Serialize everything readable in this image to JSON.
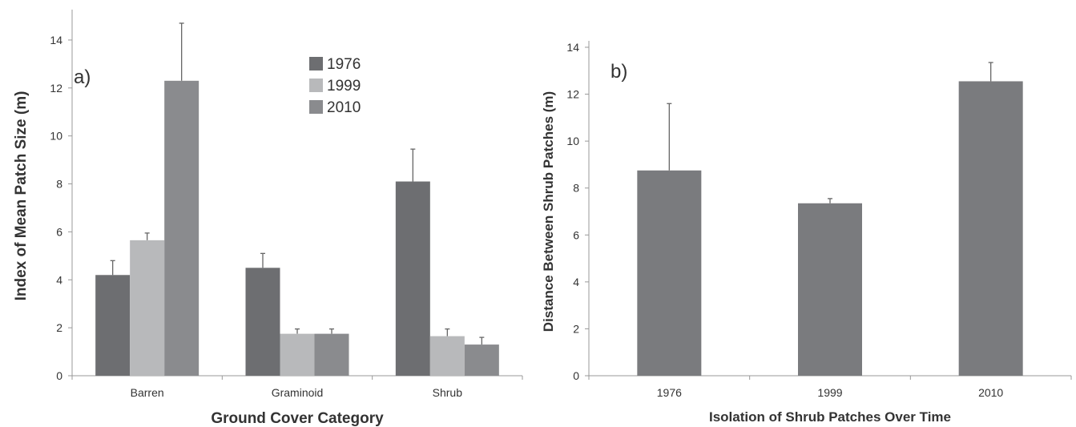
{
  "chart_data": [
    {
      "type": "bar",
      "panel_label": "a)",
      "xlabel": "Ground Cover Category",
      "ylabel": "Index of Mean Patch Size (m)",
      "categories": [
        "Barren",
        "Graminoid",
        "Shrub"
      ],
      "ylim": [
        0,
        15
      ],
      "yticks": [
        0,
        2,
        4,
        6,
        8,
        10,
        12,
        14
      ],
      "legend_position": "top-center",
      "series": [
        {
          "name": "1976",
          "color": "#6d6e71",
          "values": [
            4.2,
            4.5,
            8.1
          ],
          "errors": [
            0.6,
            0.6,
            1.35
          ]
        },
        {
          "name": "1999",
          "color": "#b8b9bb",
          "values": [
            5.65,
            1.75,
            1.65
          ],
          "errors": [
            0.3,
            0.2,
            0.3
          ]
        },
        {
          "name": "2010",
          "color": "#8a8b8e",
          "values": [
            12.3,
            1.75,
            1.3
          ],
          "errors": [
            2.4,
            0.2,
            0.3
          ]
        }
      ]
    },
    {
      "type": "bar",
      "panel_label": "b)",
      "xlabel": "Isolation of Shrub Patches Over Time",
      "ylabel": "Distance Between Shrub Patches (m)",
      "categories": [
        "1976",
        "1999",
        "2010"
      ],
      "ylim": [
        0,
        14
      ],
      "yticks": [
        0,
        2,
        4,
        6,
        8,
        10,
        12,
        14
      ],
      "color": "#7a7b7e",
      "values": [
        8.75,
        7.35,
        12.55
      ],
      "errors": [
        2.85,
        0.2,
        0.8
      ]
    }
  ]
}
